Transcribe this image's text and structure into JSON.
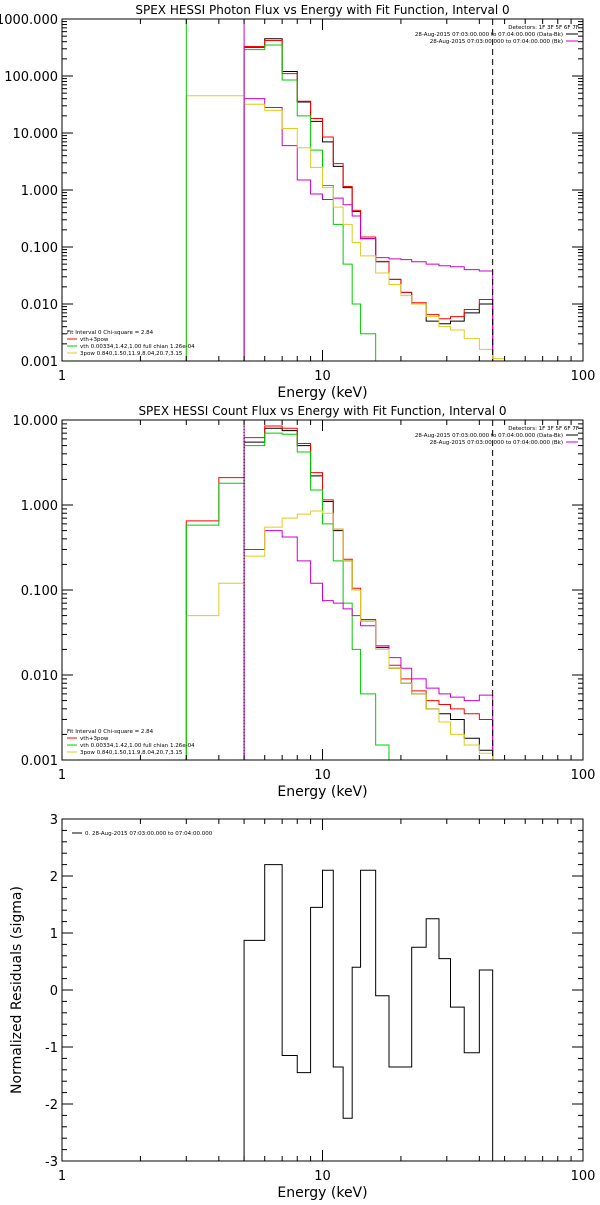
{
  "chart_data": [
    {
      "type": "line",
      "title": "SPEX HESSI Photon Flux vs Energy with Fit Function, Interval 0",
      "xlabel": "Energy (keV)",
      "ylabel": "",
      "xscale": "log",
      "yscale": "log",
      "xlim": [
        1,
        100
      ],
      "ylim": [
        0.001,
        1000
      ],
      "xticks": [
        1,
        10,
        100
      ],
      "xtick_labels": [
        "1",
        "10",
        "100"
      ],
      "yticks": [
        0.001,
        0.01,
        0.1,
        1,
        10,
        100,
        1000
      ],
      "ytick_labels": [
        "0.001",
        "0.010",
        "0.100",
        "1.000",
        "10.000",
        "100.000",
        "1000.000"
      ],
      "edges": [
        3,
        5,
        6,
        7,
        8,
        9,
        10,
        11,
        12,
        13,
        14,
        16,
        18,
        20,
        22,
        25,
        28,
        31,
        35,
        40,
        45,
        50,
        56,
        63,
        70,
        80
      ],
      "series": [
        {
          "color": "#000000",
          "values": [
            null,
            320,
            450,
            120,
            35,
            16,
            7,
            2.6,
            1.1,
            0.42,
            0.14,
            0.055,
            0.027,
            0.016,
            0.01,
            0.005,
            0.0045,
            0.005,
            0.007,
            0.01,
            null,
            null,
            null,
            null,
            null
          ]
        },
        {
          "color": "#ff0000",
          "values": [
            null,
            330,
            420,
            110,
            36,
            18,
            8.5,
            2.9,
            1.15,
            0.44,
            0.15,
            0.056,
            0.027,
            0.016,
            0.0105,
            0.0065,
            0.0055,
            0.006,
            0.008,
            0.012,
            null,
            null,
            null,
            null,
            null
          ]
        },
        {
          "color": "#00cc00",
          "values": [
            null,
            290,
            350,
            85,
            20,
            5,
            1.2,
            0.25,
            0.05,
            0.01,
            0.003,
            0.0008,
            null,
            null,
            null,
            null,
            null,
            null,
            null,
            null,
            null,
            null,
            null,
            null,
            null
          ]
        },
        {
          "color": "#cc00cc",
          "values": [
            null,
            40,
            28,
            6,
            1.5,
            0.85,
            0.68,
            0.72,
            0.55,
            0.35,
            0.14,
            0.065,
            0.062,
            0.06,
            0.055,
            0.05,
            0.047,
            0.045,
            0.04,
            0.038,
            null,
            null,
            null,
            null,
            null
          ]
        },
        {
          "color": "#ddcc22",
          "values": [
            45,
            32,
            25,
            12,
            5.5,
            2.5,
            1.1,
            0.5,
            0.25,
            0.12,
            0.07,
            0.035,
            0.022,
            0.014,
            0.01,
            0.006,
            0.004,
            0.0035,
            0.0025,
            0.0016,
            0.0011,
            null,
            null,
            null,
            null
          ]
        }
      ],
      "extra_lines": [
        {
          "color": "#00cc00",
          "x": 3,
          "from": 0.001,
          "to": 1000
        },
        {
          "color": "#cc00cc",
          "x": 5,
          "from": 0.001,
          "to": 1000
        }
      ],
      "legend": {
        "placement": "bottom-left",
        "header": "Fit Interval 0   Chi-square = 2.84",
        "entries": [
          {
            "color": "#ff0000",
            "text": "vth+3pow"
          },
          {
            "color": "#00cc00",
            "text": "vth 0.00334,1.42,1.00  full chian 1.26e-04"
          },
          {
            "color": "#ddcc22",
            "text": "3pow 0.840,1.50,11.9,8.04,20.7,3.15"
          }
        ]
      },
      "detectors": {
        "placement": "top-right",
        "lines": [
          {
            "text": "Detectors: 1F 3F 5F 6F 7F",
            "color": ""
          },
          {
            "text": "28-Aug-2015 07:03:00.000 to 07:04:00.000 (Data-Bk)",
            "color": "#000000"
          },
          {
            "text": "28-Aug-2015 07:03:00.000 to 07:04:00.000 (Bk)",
            "color": "#cc00cc"
          }
        ]
      },
      "vlines": [
        {
          "x": 45,
          "style": "dashed"
        }
      ]
    },
    {
      "type": "line",
      "title": "SPEX HESSI Count Flux vs Energy with Fit Function, Interval 0",
      "xlabel": "Energy (keV)",
      "ylabel": "",
      "xscale": "log",
      "yscale": "log",
      "xlim": [
        1,
        100
      ],
      "ylim": [
        0.001,
        10
      ],
      "xticks": [
        1,
        10,
        100
      ],
      "xtick_labels": [
        "1",
        "10",
        "100"
      ],
      "yticks": [
        0.001,
        0.01,
        0.1,
        1,
        10
      ],
      "ytick_labels": [
        "0.001",
        "0.010",
        "0.100",
        "1.000",
        "10.000"
      ],
      "edges": [
        3,
        4,
        5,
        6,
        7,
        8,
        9,
        10,
        11,
        12,
        13,
        14,
        16,
        18,
        20,
        22,
        25,
        28,
        31,
        35,
        40,
        45
      ],
      "series": [
        {
          "color": "#000000",
          "values": [
            null,
            null,
            5.5,
            8,
            7.5,
            5,
            2.2,
            1.1,
            0.5,
            0.22,
            0.1,
            0.043,
            0.021,
            0.012,
            0.008,
            0.006,
            0.004,
            0.0035,
            0.003,
            0.0018,
            0.0013
          ]
        },
        {
          "color": "#ff0000",
          "values": [
            0.65,
            2.1,
            6.2,
            8.5,
            8,
            5.3,
            2.4,
            1.15,
            0.52,
            0.23,
            0.105,
            0.045,
            0.022,
            0.013,
            0.009,
            0.0065,
            0.005,
            0.0045,
            0.004,
            0.0035,
            0.003
          ]
        },
        {
          "color": "#00cc00",
          "values": [
            0.58,
            1.8,
            5,
            7,
            6.8,
            4.2,
            1.5,
            0.6,
            0.22,
            0.07,
            0.02,
            0.006,
            0.0015,
            0.0007,
            null,
            null,
            null,
            null,
            null,
            null,
            null
          ]
        },
        {
          "color": "#cc00cc",
          "values": [
            null,
            null,
            0.3,
            0.5,
            0.42,
            0.22,
            0.12,
            0.075,
            0.07,
            0.06,
            0.05,
            0.038,
            0.022,
            0.016,
            0.012,
            0.009,
            0.007,
            0.006,
            0.0055,
            0.005,
            0.0058
          ]
        },
        {
          "color": "#ddcc22",
          "values": [
            0.05,
            0.12,
            0.25,
            0.55,
            0.7,
            0.78,
            0.85,
            0.8,
            0.52,
            0.22,
            0.1,
            0.043,
            0.02,
            0.012,
            0.008,
            0.006,
            0.004,
            0.0028,
            0.002,
            0.0015,
            0.0012
          ]
        }
      ],
      "extra_lines": [
        {
          "color": "#00cc00",
          "x": 3,
          "from": 0.001,
          "to": 0.58
        },
        {
          "color": "#cc00cc",
          "x": 5,
          "from": 0.001,
          "to": 10
        }
      ],
      "legend": {
        "placement": "bottom-left",
        "header": "Fit Interval 0   Chi-square = 2.84",
        "entries": [
          {
            "color": "#ff0000",
            "text": "vth+3pow"
          },
          {
            "color": "#00cc00",
            "text": "vth 0.00334,1.42,1.00  full chian 1.26e-04"
          },
          {
            "color": "#ddcc22",
            "text": "3pow 0.840,1.50,11.9,8.04,20.7,3.15"
          }
        ]
      },
      "detectors": {
        "placement": "top-right",
        "lines": [
          {
            "text": "Detectors: 1F 3F 5F 6F 7F",
            "color": ""
          },
          {
            "text": "28-Aug-2015 07:03:00.000 to 07:04:00.000 (Data-Bk)",
            "color": "#000000"
          },
          {
            "text": "28-Aug-2015 07:03:00.000 to 07:04:00.000 (Bk)",
            "color": "#cc00cc"
          }
        ]
      },
      "vlines": [
        {
          "x": 45,
          "style": "dashed"
        },
        {
          "x": 5,
          "style": "dotted"
        }
      ]
    },
    {
      "type": "line",
      "title": "",
      "xlabel": "Energy (keV)",
      "ylabel": "Normalized Residuals (sigma)",
      "xscale": "log",
      "yscale": "linear",
      "xlim": [
        1,
        100
      ],
      "ylim": [
        -3,
        3
      ],
      "xticks": [
        1,
        10,
        100
      ],
      "xtick_labels": [
        "1",
        "10",
        "100"
      ],
      "yticks": [
        -3,
        -2,
        -1,
        0,
        1,
        2,
        3
      ],
      "ytick_labels": [
        "-3",
        "-2",
        "-1",
        "0",
        "1",
        "2",
        "3"
      ],
      "edges": [
        5,
        6,
        7,
        8,
        9,
        10,
        11,
        12,
        13,
        14,
        16,
        18,
        20,
        22,
        25,
        28,
        31,
        35,
        40,
        45
      ],
      "series": [
        {
          "color": "#000000",
          "values": [
            0.87,
            2.2,
            -1.15,
            -1.45,
            1.45,
            2.1,
            -1.35,
            -2.25,
            0.4,
            2.1,
            -0.1,
            -1.35,
            -1.35,
            0.75,
            1.25,
            0.55,
            -0.3,
            -1.1,
            0.35
          ]
        }
      ],
      "legend": {
        "placement": "top-left",
        "entries": [
          {
            "color": "#000000",
            "text": "0. 28-Aug-2015 07:03:00.000 to 07:04:00.000"
          }
        ]
      }
    }
  ]
}
